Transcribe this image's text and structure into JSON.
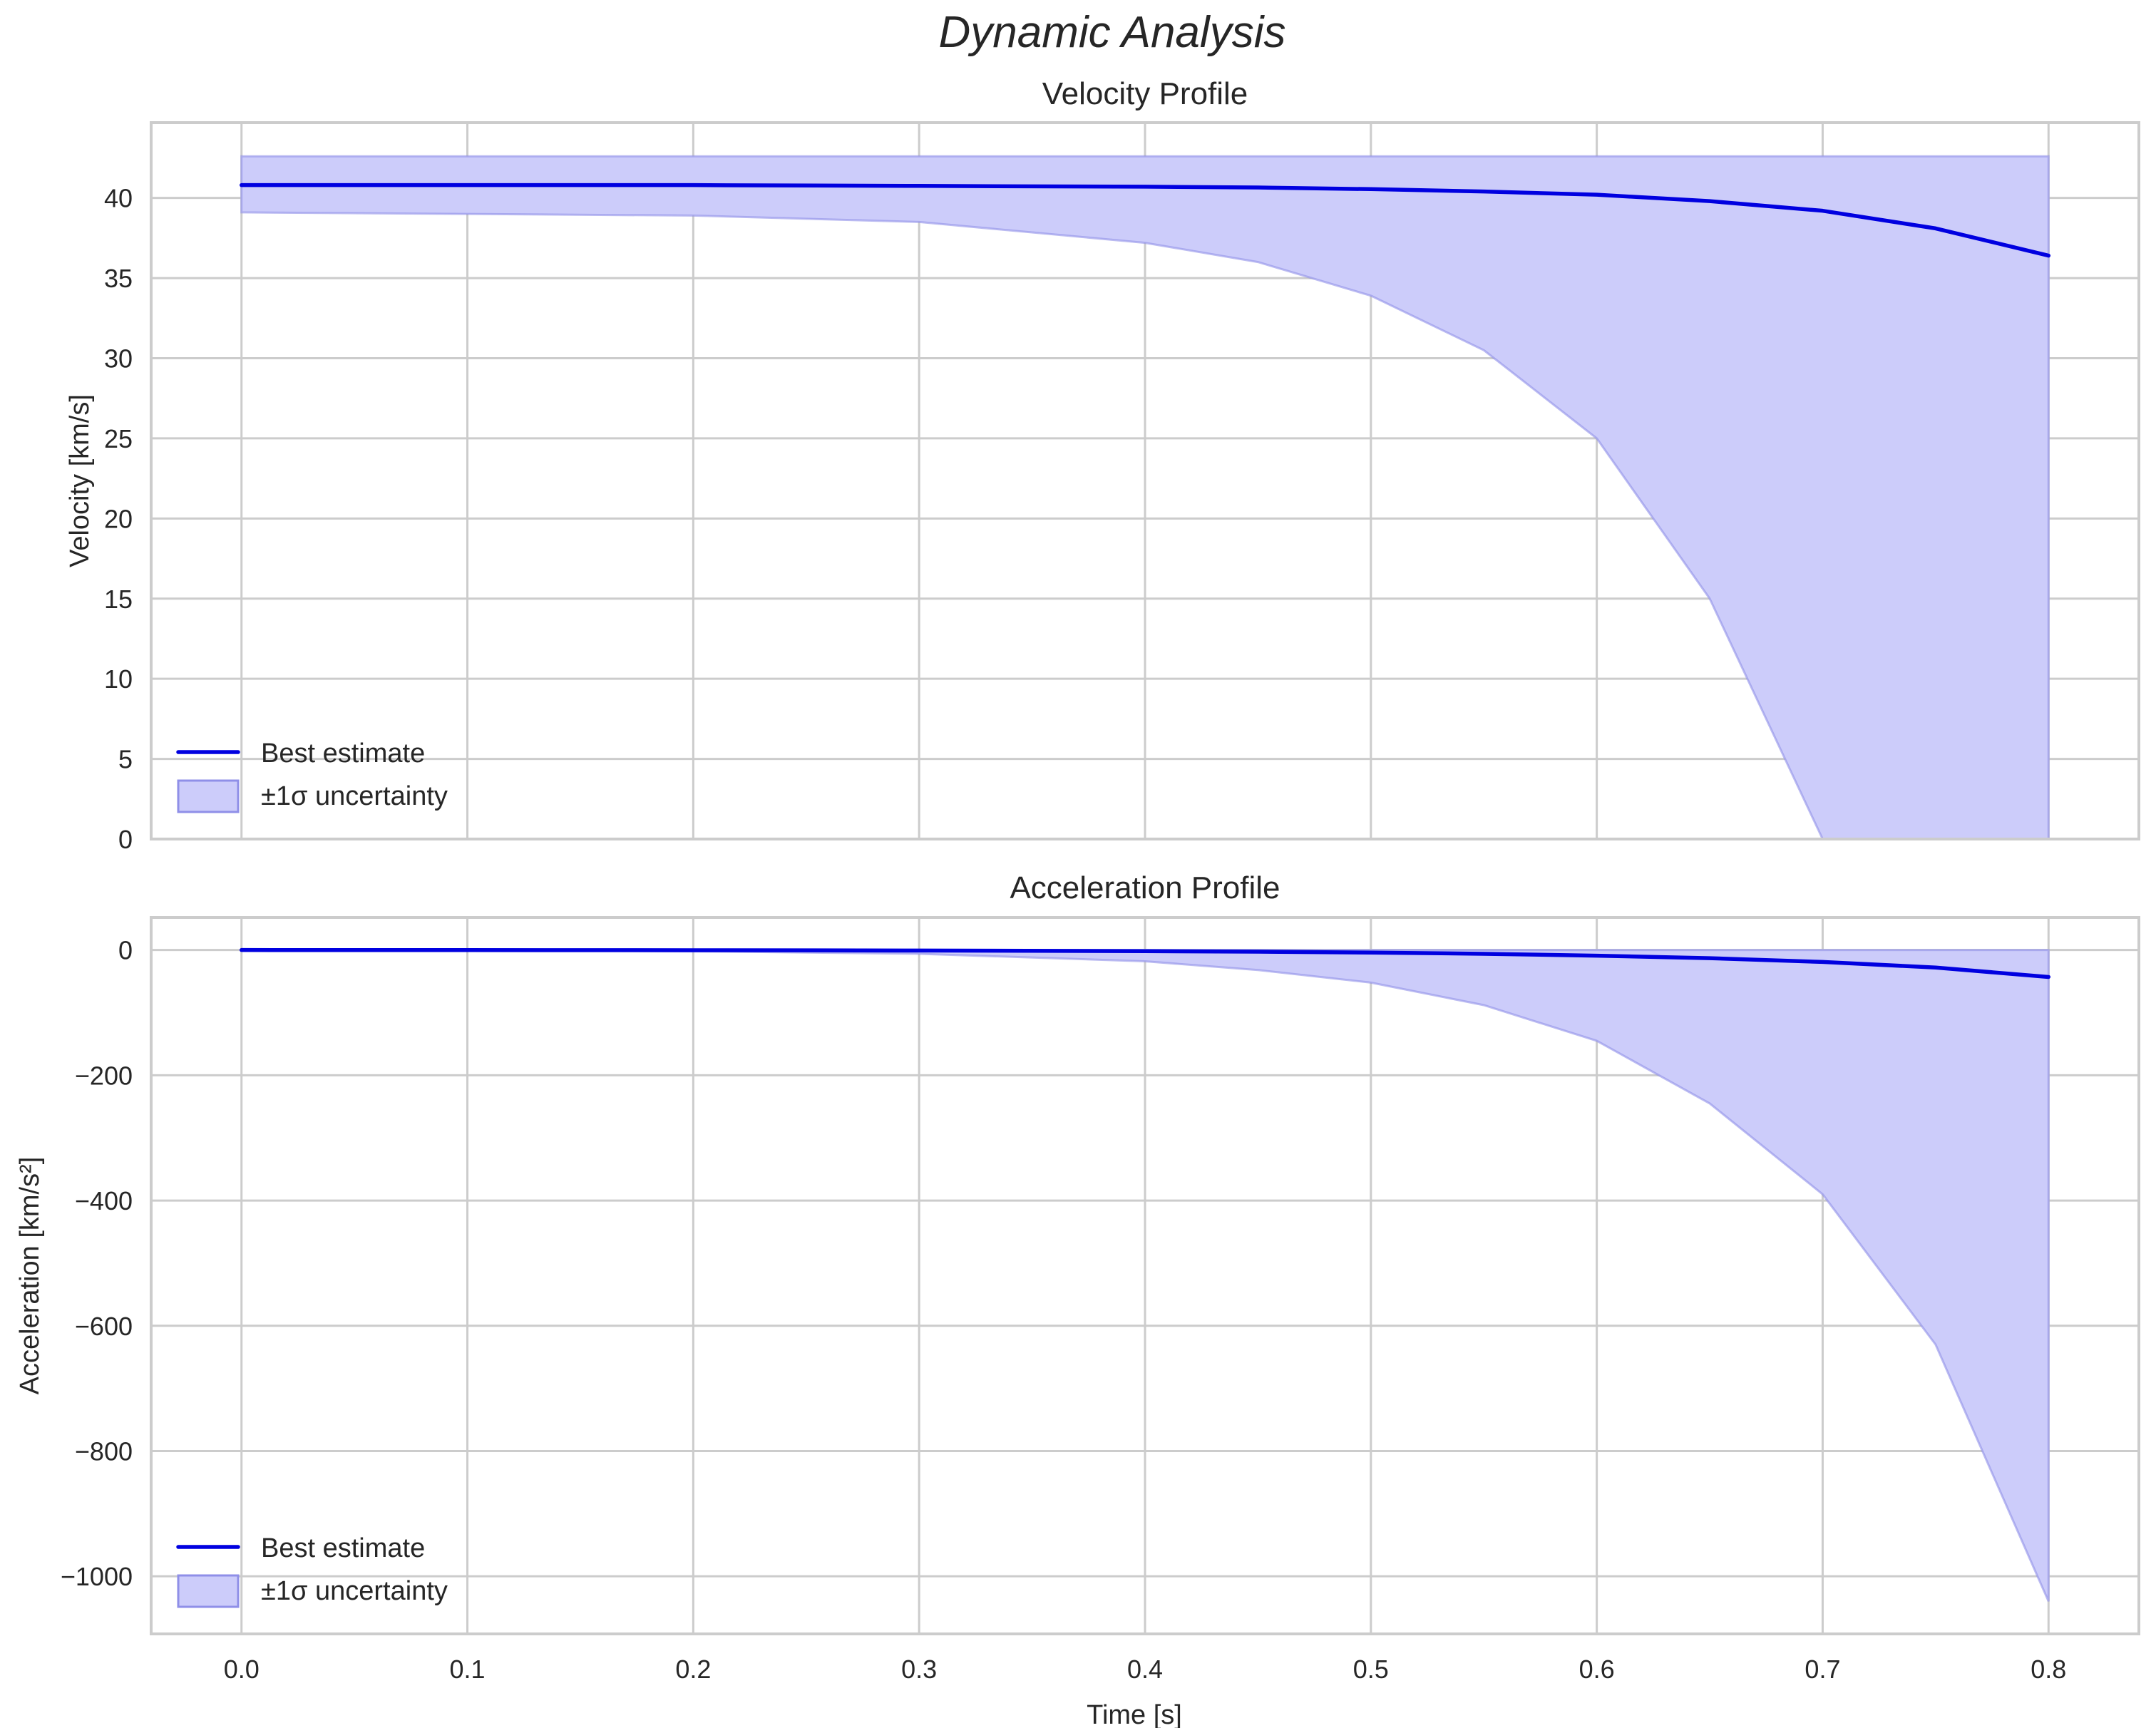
{
  "figure": {
    "title": "Dynamic Analysis"
  },
  "legend": {
    "line_label": "Best estimate",
    "band_label": "±1σ uncertainty"
  },
  "colors": {
    "line": "#0000e0",
    "band": "#ccccfa",
    "band_edge": "#8f8fe8",
    "grid": "#cccccc"
  },
  "chart_data": [
    {
      "type": "line",
      "title": "Velocity Profile",
      "xlabel": "",
      "ylabel": "Velocity [km/s]",
      "xlim": [
        -0.04,
        0.84
      ],
      "ylim": [
        0,
        44.7
      ],
      "xticks": [
        "0.0",
        "0.1",
        "0.2",
        "0.3",
        "0.4",
        "0.5",
        "0.6",
        "0.7",
        "0.8"
      ],
      "yticks": [
        "0",
        "5",
        "10",
        "15",
        "20",
        "25",
        "30",
        "35",
        "40"
      ],
      "grid": true,
      "legend_position": "lower left",
      "x": [
        0.0,
        0.1,
        0.2,
        0.3,
        0.4,
        0.45,
        0.5,
        0.55,
        0.6,
        0.65,
        0.7,
        0.75,
        0.8
      ],
      "series": [
        {
          "name": "Best estimate",
          "values": [
            40.8,
            40.8,
            40.8,
            40.75,
            40.7,
            40.65,
            40.55,
            40.4,
            40.2,
            39.8,
            39.2,
            38.1,
            36.4
          ]
        },
        {
          "name": "±1σ upper",
          "values": [
            42.6,
            42.6,
            42.6,
            42.6,
            42.6,
            42.6,
            42.6,
            42.6,
            42.6,
            42.6,
            42.6,
            42.6,
            42.6
          ]
        },
        {
          "name": "±1σ lower",
          "values": [
            39.1,
            39.0,
            38.9,
            38.5,
            37.2,
            36.0,
            33.9,
            30.5,
            25.0,
            15.0,
            0.0,
            0.0,
            0.0
          ]
        }
      ]
    },
    {
      "type": "line",
      "title": "Acceleration Profile",
      "xlabel": "Time [s]",
      "ylabel": "Acceleration [km/s²]",
      "xlim": [
        -0.04,
        0.84
      ],
      "ylim": [
        -1092,
        52
      ],
      "xticks": [
        "0.0",
        "0.1",
        "0.2",
        "0.3",
        "0.4",
        "0.5",
        "0.6",
        "0.7",
        "0.8"
      ],
      "yticks": [
        "0",
        "−200",
        "−400",
        "−600",
        "−800",
        "−1000"
      ],
      "grid": true,
      "legend_position": "lower left",
      "x": [
        0.0,
        0.1,
        0.2,
        0.3,
        0.4,
        0.45,
        0.5,
        0.55,
        0.6,
        0.65,
        0.7,
        0.75,
        0.8
      ],
      "series": [
        {
          "name": "Best estimate",
          "values": [
            0,
            -0.1,
            -0.3,
            -0.8,
            -1.8,
            -2.7,
            -4,
            -6,
            -9,
            -13,
            -19,
            -28,
            -43
          ]
        },
        {
          "name": "±1σ upper",
          "values": [
            0,
            0,
            0,
            0,
            0,
            0,
            0,
            0,
            0,
            0,
            0,
            0,
            0
          ]
        },
        {
          "name": "±1σ lower",
          "values": [
            0,
            -0.5,
            -2,
            -6,
            -18,
            -32,
            -52,
            -88,
            -145,
            -245,
            -390,
            -630,
            -1040
          ]
        }
      ]
    }
  ]
}
